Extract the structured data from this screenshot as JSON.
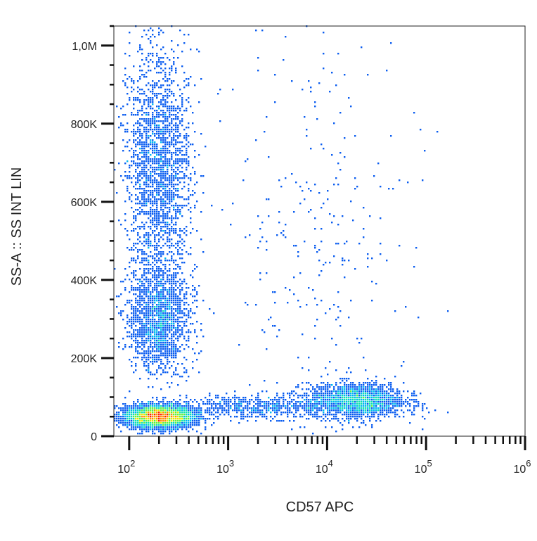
{
  "chart_data": {
    "type": "scatter",
    "style": "density-dot-plot",
    "xlabel": "CD57 APC",
    "ylabel": "SS-A :: SS INT LIN",
    "xscale": "log",
    "xlim": [
      70,
      1000000
    ],
    "yscale": "linear",
    "ylim": [
      0,
      1050000
    ],
    "x_ticks": [
      {
        "value": 100,
        "base": "10",
        "exp": "2"
      },
      {
        "value": 1000,
        "base": "10",
        "exp": "3"
      },
      {
        "value": 10000,
        "base": "10",
        "exp": "4"
      },
      {
        "value": 100000,
        "base": "10",
        "exp": "5"
      },
      {
        "value": 1000000,
        "base": "10",
        "exp": "6"
      }
    ],
    "y_ticks": [
      {
        "value": 0,
        "label": "0"
      },
      {
        "value": 200000,
        "label": "200K"
      },
      {
        "value": 400000,
        "label": "400K"
      },
      {
        "value": 600000,
        "label": "600K"
      },
      {
        "value": 800000,
        "label": "800K"
      },
      {
        "value": 1000000,
        "label": "1,0M"
      }
    ],
    "populations": [
      {
        "x_center": 200,
        "x_log_sd": 0.17,
        "y_center": 50000,
        "y_sd": 14000,
        "relative_density": 1.0
      },
      {
        "x_center": 200,
        "x_log_sd": 0.16,
        "y_center": 680000,
        "y_sd": 155000,
        "relative_density": 0.55
      },
      {
        "x_center": 200,
        "x_log_sd": 0.15,
        "y_center": 300000,
        "y_sd": 65000,
        "relative_density": 0.4
      },
      {
        "x_center": 20000,
        "x_log_sd": 0.24,
        "y_center": 90000,
        "y_sd": 22000,
        "relative_density": 0.5
      },
      {
        "x_center": 2000,
        "x_log_sd": 0.45,
        "y_center": 75000,
        "y_sd": 15000,
        "relative_density": 0.15
      },
      {
        "x_center": 8000,
        "x_log_sd": 0.45,
        "y_center": 550000,
        "y_sd": 280000,
        "relative_density": 0.04
      }
    ],
    "colormap": [
      "#1010c8",
      "#0a5cf0",
      "#00b8f0",
      "#10e0b0",
      "#60f040",
      "#e8e800",
      "#ff9000",
      "#ff2000"
    ],
    "grid": false,
    "legend": "none"
  }
}
